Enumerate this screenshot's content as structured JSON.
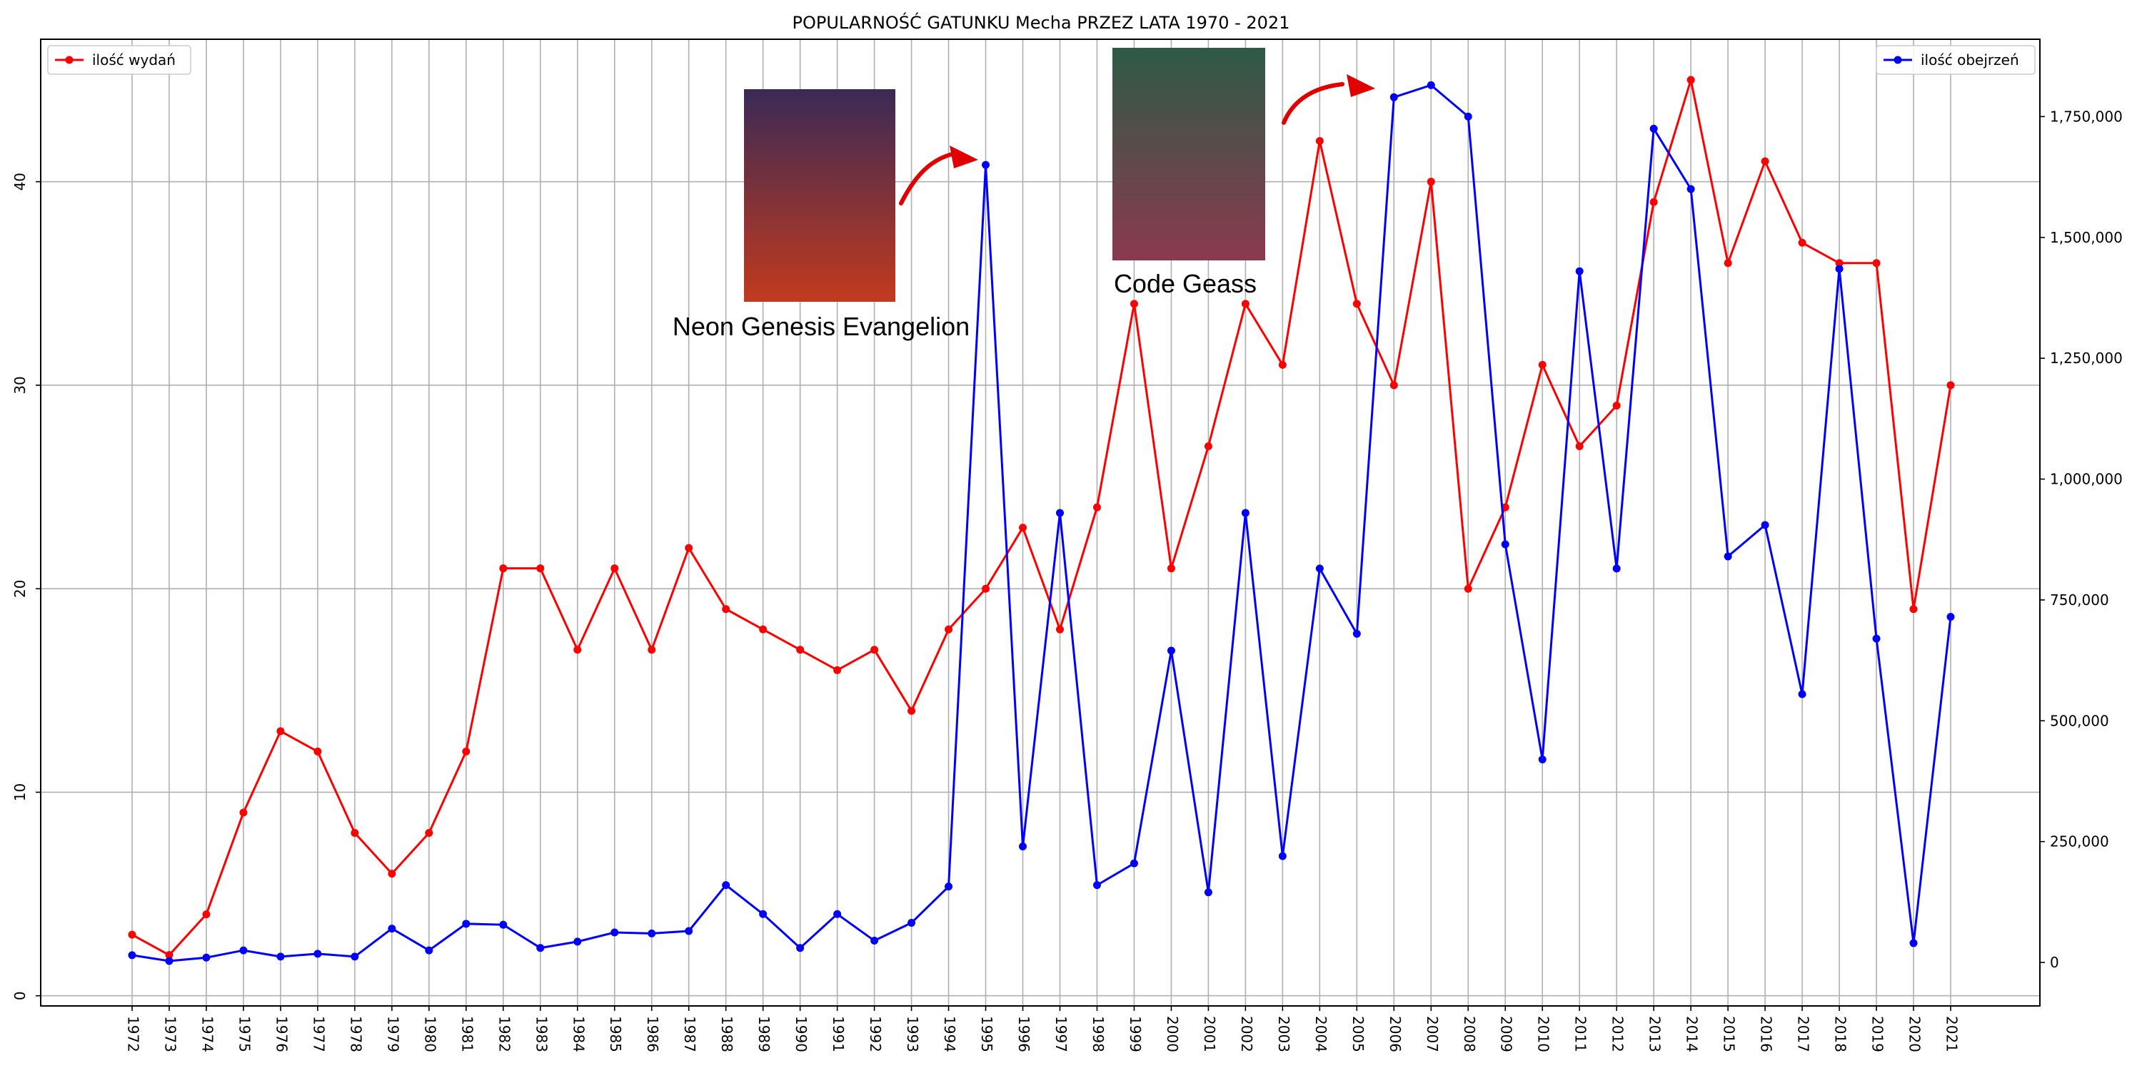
{
  "chart_data": {
    "type": "line",
    "title": "POPULARNOŚĆ GATUNKU Mecha PRZEZ LATA 1970 - 2021",
    "xlabel": "",
    "ylabel": "",
    "x": [
      "1972",
      "1973",
      "1974",
      "1975",
      "1976",
      "1977",
      "1978",
      "1979",
      "1980",
      "1981",
      "1982",
      "1983",
      "1984",
      "1985",
      "1986",
      "1987",
      "1988",
      "1989",
      "1990",
      "1991",
      "1992",
      "1993",
      "1994",
      "1995",
      "1996",
      "1997",
      "1998",
      "1999",
      "2000",
      "2001",
      "2002",
      "2003",
      "2004",
      "2005",
      "2006",
      "2007",
      "2008",
      "2009",
      "2010",
      "2011",
      "2012",
      "2013",
      "2014",
      "2015",
      "2016",
      "2017",
      "2018",
      "2019",
      "2020",
      "2021"
    ],
    "series": [
      {
        "name": "ilość wydań",
        "axis": "left",
        "color": "#ff0000",
        "values": [
          3,
          2,
          4,
          9,
          13,
          12,
          8,
          6,
          8,
          12,
          21,
          21,
          17,
          21,
          17,
          22,
          19,
          18,
          17,
          16,
          17,
          14,
          18,
          20,
          23,
          18,
          24,
          34,
          21,
          27,
          34,
          31,
          42,
          34,
          30,
          40,
          20,
          24,
          31,
          27,
          29,
          39,
          45,
          36,
          41,
          37,
          36,
          36,
          19,
          30
        ]
      },
      {
        "name": "ilość obejrzeń",
        "axis": "right",
        "color": "#0000ff",
        "values": [
          15000,
          3000,
          10000,
          25000,
          12000,
          18000,
          12000,
          70000,
          25000,
          80000,
          78000,
          30000,
          43000,
          62000,
          60000,
          65000,
          160000,
          100000,
          30000,
          100000,
          45000,
          82000,
          157000,
          1650000,
          240000,
          930000,
          160000,
          205000,
          645000,
          145000,
          930000,
          220000,
          815000,
          680000,
          1790000,
          1815000,
          1750000,
          865000,
          420000,
          1430000,
          815000,
          1725000,
          1600000,
          840000,
          905000,
          555000,
          1435000,
          670000,
          40000,
          715000
        ]
      }
    ],
    "left_axis": {
      "ylim": [
        -0.5,
        47
      ],
      "ticks": [
        0,
        10,
        20,
        30,
        40
      ],
      "tick_labels": [
        "0",
        "10",
        "20",
        "30",
        "40"
      ]
    },
    "right_axis": {
      "ylim": [
        -90000,
        1910000
      ],
      "ticks": [
        0,
        250000,
        500000,
        750000,
        1000000,
        1250000,
        1500000,
        1750000
      ],
      "tick_labels": [
        "0",
        "250,000",
        "500,000",
        "750,000",
        "1,000,000",
        "1,250,000",
        "1,500,000",
        "1,750,000"
      ]
    },
    "grid": true,
    "legend_left": "top-left",
    "legend_right": "top-right",
    "annotations": [
      {
        "label": "Neon Genesis Evangelion",
        "near_year": "1995"
      },
      {
        "label": "Code Geass",
        "near_year": "2006"
      }
    ]
  }
}
